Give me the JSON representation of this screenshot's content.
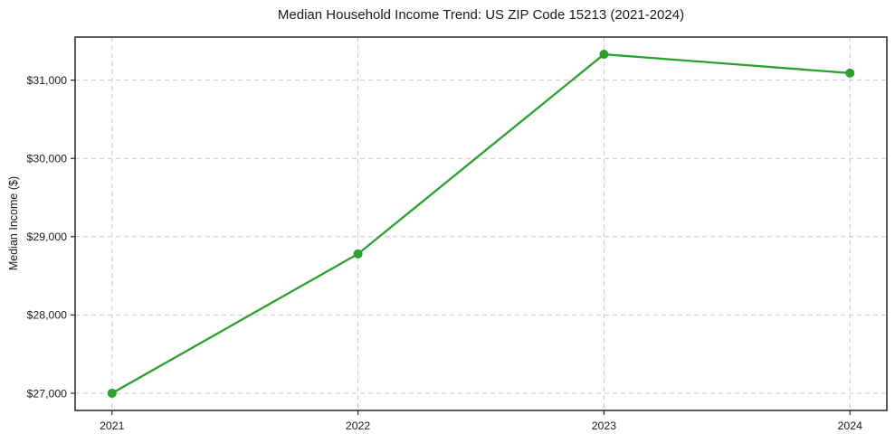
{
  "chart_data": {
    "type": "line",
    "title": "Median Household Income Trend: US ZIP Code 15213 (2021-2024)",
    "xlabel": "",
    "ylabel": "Median Income ($)",
    "x": [
      2021,
      2022,
      2023,
      2024
    ],
    "x_tick_labels": [
      "2021",
      "2022",
      "2023",
      "2024"
    ],
    "series": [
      {
        "name": "Median Household Income",
        "values": [
          27000,
          28780,
          31330,
          31090
        ],
        "color": "#2ca02c",
        "marker": "circle"
      }
    ],
    "y_ticks": [
      27000,
      28000,
      29000,
      30000,
      31000
    ],
    "y_tick_labels": [
      "$27,000",
      "$28,000",
      "$29,000",
      "$30,000",
      "$31,000"
    ],
    "ylim": [
      26780,
      31550
    ],
    "xlim": [
      2020.85,
      2024.15
    ],
    "grid": true,
    "grid_style": "dashed",
    "legend": "none",
    "colors": {
      "line": "#2ca02c",
      "grid": "#c9c9c9",
      "spine": "#262626",
      "text": "#1a1a1a"
    }
  }
}
